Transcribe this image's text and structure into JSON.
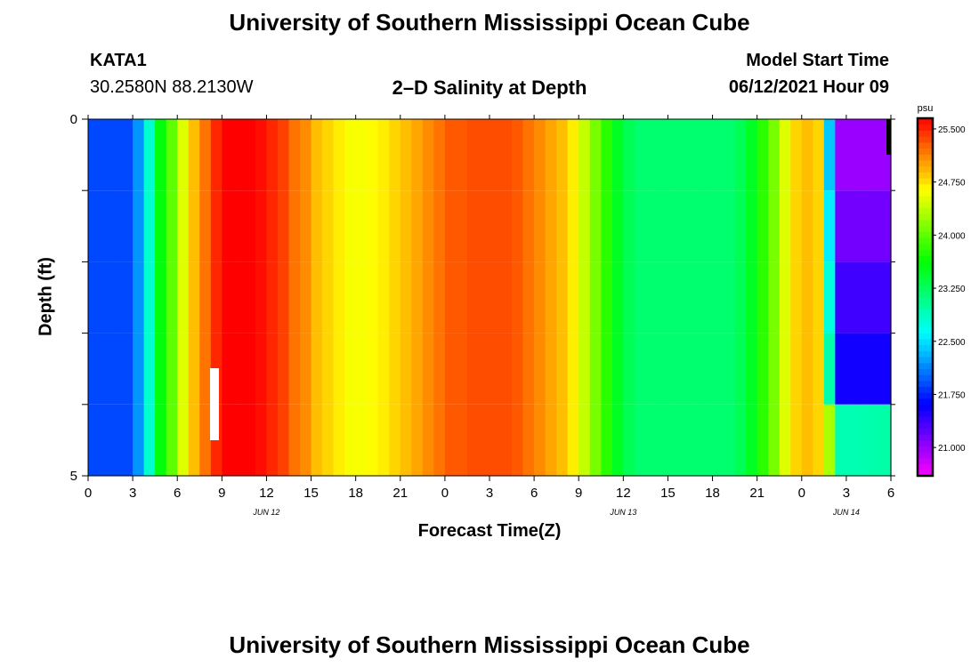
{
  "header": {
    "title": "University of Southern Mississippi Ocean Cube",
    "station": "KATA1",
    "coords": "30.2580N  88.2130W",
    "plot_title": "2–D Salinity at Depth",
    "model_start_label": "Model Start Time",
    "model_start_value": "06/12/2021 Hour 09"
  },
  "footer": {
    "title": "University of Southern Mississippi Ocean Cube"
  },
  "chart_data": {
    "type": "heatmap",
    "title": "2–D Salinity at Depth",
    "xlabel": "Forecast Time(Z)",
    "ylabel": "Depth (ft)",
    "units": "psu",
    "x_hours_range": [
      0,
      54
    ],
    "ylim": [
      0,
      5
    ],
    "x_ticks": [
      "0",
      "3",
      "6",
      "9",
      "12",
      "15",
      "18",
      "21",
      "0",
      "3",
      "6",
      "9",
      "12",
      "15",
      "18",
      "21",
      "0",
      "3",
      "6"
    ],
    "date_labels": [
      {
        "hour": 12,
        "label": "JUN 12"
      },
      {
        "hour": 36,
        "label": "JUN 13"
      },
      {
        "hour": 51,
        "label": "JUN 14"
      }
    ],
    "y_ticks": [
      "0",
      "5"
    ],
    "colorbar": {
      "label": "psu",
      "range": [
        20.6,
        25.65
      ],
      "ticks": [
        "25.500",
        "24.750",
        "24.000",
        "23.250",
        "22.500",
        "21.750",
        "21.000"
      ],
      "tick_values": [
        25.5,
        24.75,
        24.0,
        23.25,
        22.5,
        21.75,
        21.0
      ]
    },
    "salinity_by_hour": [
      21.9,
      21.9,
      21.9,
      21.9,
      22.2,
      22.8,
      23.6,
      24.0,
      24.5,
      24.9,
      25.2,
      25.5,
      25.65,
      25.65,
      25.65,
      25.6,
      25.5,
      25.4,
      25.2,
      25.1,
      24.9,
      24.8,
      24.7,
      24.6,
      24.6,
      24.65,
      24.7,
      24.8,
      24.9,
      25.0,
      25.1,
      25.2,
      25.3,
      25.3,
      25.35,
      25.35,
      25.35,
      25.35,
      25.3,
      25.2,
      25.1,
      25.0,
      24.9,
      24.7,
      24.4,
      24.1,
      23.8,
      23.5,
      23.3,
      23.2,
      23.2,
      23.2,
      23.2,
      23.2,
      23.2,
      23.2,
      23.2,
      23.2,
      23.3,
      23.5,
      23.8,
      24.1,
      24.5,
      24.8,
      24.9,
      24.8,
      22.4,
      21.0,
      21.0,
      21.0,
      21.0,
      21.0
    ],
    "hour_step": 0.75,
    "late_layers_note": "After hour ~49 the column stratifies: fresher at surface, saltier at depth"
  }
}
